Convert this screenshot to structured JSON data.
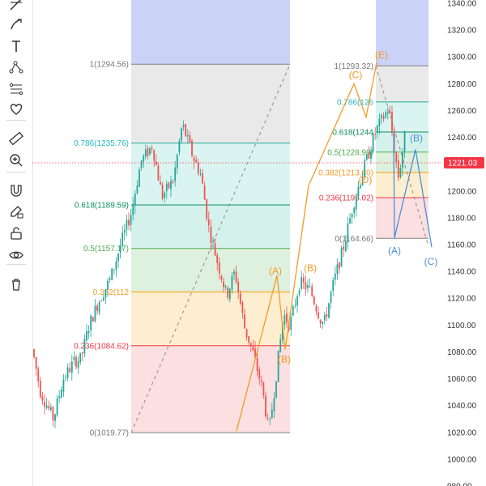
{
  "toolbar": {
    "tools": [
      {
        "name": "trend-line-tool-icon"
      },
      {
        "name": "brush-tool-icon"
      },
      {
        "name": "text-tool-icon"
      },
      {
        "name": "pattern-tool-icon"
      },
      {
        "name": "fib-tool-icon"
      },
      {
        "name": "favorites-heart-icon"
      },
      {
        "name": "ruler-measure-icon"
      },
      {
        "name": "zoom-in-icon"
      },
      {
        "name": "magnet-icon"
      },
      {
        "name": "lock-drawing-icon"
      },
      {
        "name": "unlock-icon"
      },
      {
        "name": "visibility-eye-icon"
      },
      {
        "name": "trash-icon"
      }
    ]
  },
  "colors": {
    "candle_up": "#26a69a",
    "candle_down": "#ef5350",
    "wave_orange": "#f59a23",
    "wave_blue": "#4d8fd6",
    "current_price_bg": "#f23645",
    "fib_top_zone": "#b9c3f5"
  },
  "chart_data": {
    "type": "candlestick",
    "y_axis": {
      "ylim": [
        980,
        1340
      ],
      "ticks": [
        "1340.00",
        "1320.00",
        "1300.00",
        "1280.00",
        "1260.00",
        "1240.00",
        "1220.00",
        "1200.00",
        "1180.00",
        "1160.00",
        "1140.00",
        "1120.00",
        "1100.00",
        "1080.00",
        "1060.00",
        "1040.00",
        "1020.00",
        "1000.00",
        "980.00"
      ]
    },
    "current_price": {
      "value": 1221.03,
      "label": "1221.03"
    },
    "fib_left": {
      "levels": [
        {
          "ratio": 1,
          "price": 1294.56,
          "label": "1(1294.56)",
          "line_color": "#808080",
          "fill": "#e5e5e5",
          "text_color": "#787878"
        },
        {
          "ratio": 0.786,
          "price": 1235.76,
          "label": "0.786(1235.76)",
          "line_color": "#26a69a",
          "fill": "#d4f3ee",
          "text_color": "#26b5c4"
        },
        {
          "ratio": 0.618,
          "price": 1189.59,
          "label": "0.618(1189.59)",
          "line_color": "#0e8a5f",
          "fill": "#cdeee8",
          "text_color": "#0b8f5a"
        },
        {
          "ratio": 0.5,
          "price": 1157.17,
          "label": "0.5(1157.17)",
          "line_color": "#4caf50",
          "fill": "#d8efd8",
          "text_color": "#4caf50"
        },
        {
          "ratio": 0.382,
          "price": 1124.75,
          "label": "0.382(112",
          "line_color": "#ff9800",
          "fill": "#fdebc8",
          "text_color": "#f59a23"
        },
        {
          "ratio": 0.236,
          "price": 1084.62,
          "label": "0.236(1084.62)",
          "line_color": "#f23645",
          "fill": "#fad9dc",
          "text_color": "#f23645"
        },
        {
          "ratio": 0,
          "price": 1019.77,
          "label": "0(1019.77)",
          "line_color": "#808080",
          "fill": "none",
          "text_color": "#787878"
        }
      ]
    },
    "fib_right": {
      "levels": [
        {
          "ratio": 1,
          "price": 1293.32,
          "label": "1(1293.32)",
          "line_color": "#808080",
          "fill": "#e5e5e5",
          "text_color": "#787878"
        },
        {
          "ratio": 0.786,
          "price": 1266.4,
          "label": "0.786(126",
          "line_color": "#26a69a",
          "fill": "#d4f3ee",
          "text_color": "#26b5c4"
        },
        {
          "ratio": 0.618,
          "price": 1244.0,
          "label": "0.618(1244",
          "line_color": "#0e8a5f",
          "fill": "#cdeee8",
          "text_color": "#0b8f5a"
        },
        {
          "ratio": 0.5,
          "price": 1228.99,
          "label": "0.5(1228.99)",
          "line_color": "#4caf50",
          "fill": "#d8efd8",
          "text_color": "#4caf50"
        },
        {
          "ratio": 0.382,
          "price": 1213.8,
          "label": "0.382(1213.80)",
          "line_color": "#ff9800",
          "fill": "#fdebc8",
          "text_color": "#f59a23"
        },
        {
          "ratio": 0.236,
          "price": 1195.02,
          "label": "0.236(1195.02)",
          "line_color": "#f23645",
          "fill": "#fad9dc",
          "text_color": "#f23645"
        },
        {
          "ratio": 0,
          "price": 1164.66,
          "label": "0(1164.66)",
          "line_color": "#808080",
          "fill": "none",
          "text_color": "#787878"
        }
      ]
    },
    "wave_labels": [
      {
        "label": "(A)",
        "price": 1138,
        "color": "#f59a23"
      },
      {
        "label": "(B)",
        "price": 1072,
        "color": "#f59a23"
      },
      {
        "label": "(B)",
        "price": 1140,
        "color": "#f59a23"
      },
      {
        "label": "(C)",
        "price": 1284,
        "color": "#f59a23"
      },
      {
        "label": "(D)",
        "price": 1206,
        "color": "#f59a23"
      },
      {
        "label": "(E)",
        "price": 1299,
        "color": "#f59a23"
      },
      {
        "label": "(A)",
        "price": 1153,
        "color": "#4d8fd6"
      },
      {
        "label": "(B)",
        "price": 1237,
        "color": "#4d8fd6"
      },
      {
        "label": "(C)",
        "price": 1145,
        "color": "#4d8fd6"
      }
    ],
    "wave_paths": [
      {
        "color": "#f59a23",
        "points": [
          1021,
          1137,
          1082,
          1204,
          1280,
          1255,
          1296
        ]
      },
      {
        "color": "#4d8fd6",
        "points": [
          1243,
          1165,
          1231,
          1158
        ]
      }
    ]
  }
}
